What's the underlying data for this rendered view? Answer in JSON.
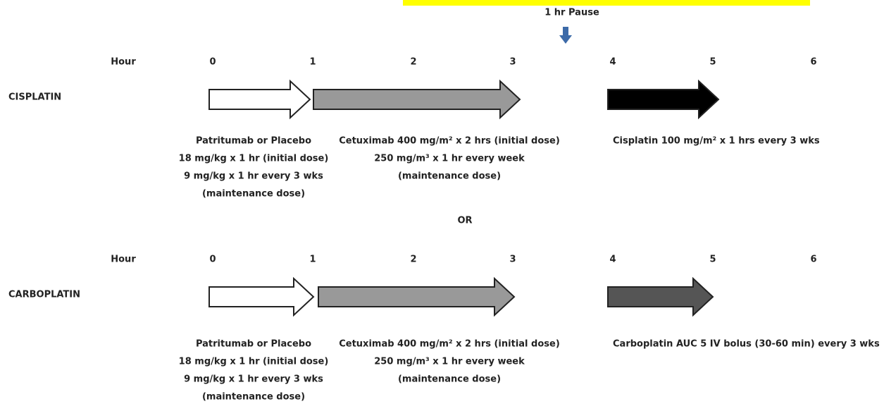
{
  "pause": "1 hr Pause",
  "separator": "OR",
  "sections": [
    {
      "name": "CISPLATIN",
      "hour_label": "Hour",
      "hours": [
        0,
        1,
        2,
        3,
        4,
        5,
        6
      ],
      "blocks": [
        [
          "Patritumab or Placebo",
          "18 mg/kg x 1 hr (initial dose)",
          "9 mg/kg x 1 hr every 3 wks",
          "(maintenance dose)"
        ],
        [
          "Cetuximab 400 mg/m² x 2 hrs (initial dose)",
          "250 mg/m³ x 1 hr every week",
          "(maintenance dose)"
        ],
        [
          "Cisplatin 100 mg/m² x 1 hrs every 3 wks"
        ]
      ]
    },
    {
      "name": "CARBOPLATIN",
      "hour_label": "Hour",
      "hours": [
        0,
        1,
        2,
        3,
        4,
        5,
        6
      ],
      "blocks": [
        [
          "Patritumab or Placebo",
          "18 mg/kg x 1 hr (initial dose)",
          "9 mg/kg x 1 hr every 3 wks",
          "(maintenance dose)"
        ],
        [
          "Cetuximab 400 mg/m² x 2 hrs (initial dose)",
          "250 mg/m³ x 1 hr every week",
          "(maintenance dose)"
        ],
        [
          "Carboplatin AUC 5 IV bolus (30-60 min) every 3 wks"
        ]
      ]
    }
  ]
}
